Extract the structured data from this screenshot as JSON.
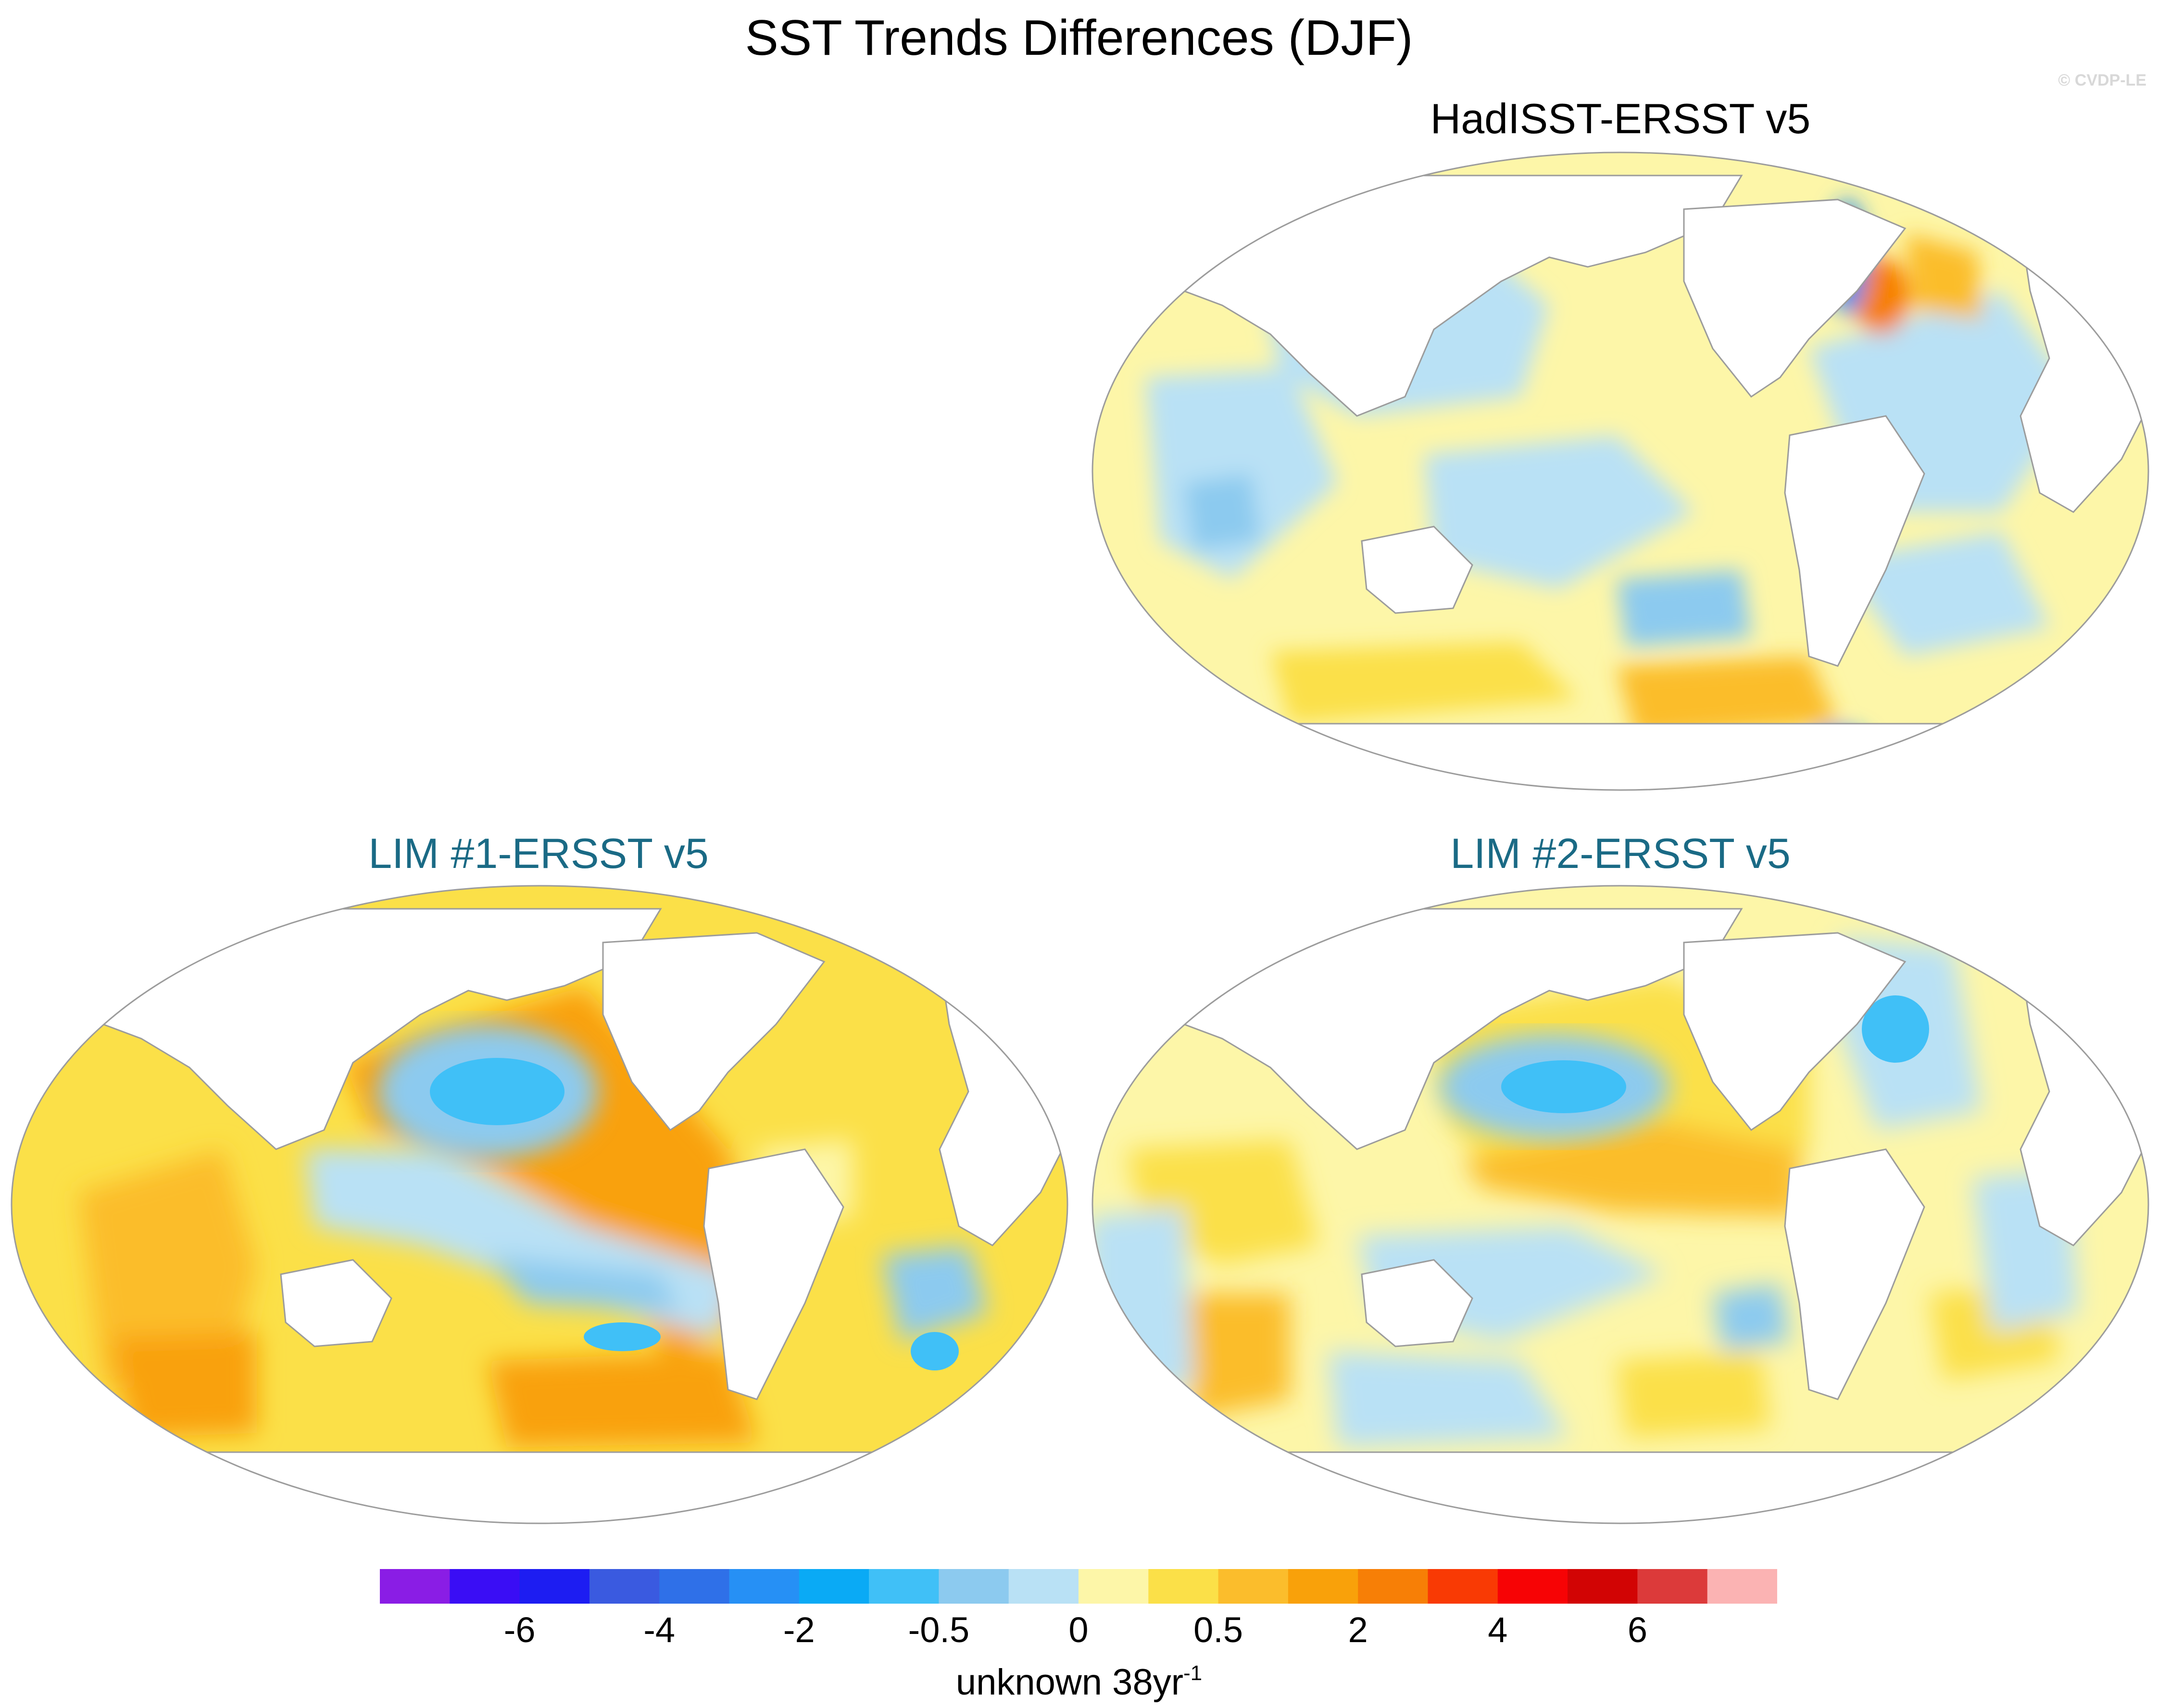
{
  "title": "SST Trends Differences (DJF)",
  "watermark": "© CVDP-LE",
  "panels": [
    {
      "title": "HadISST-ERSST v5",
      "pattern": "mixed-small-scale"
    },
    {
      "title": "LIM #1-ERSST v5",
      "pattern": "broad-positive-with-north-pacific-negative"
    },
    {
      "title": "LIM #2-ERSST v5",
      "pattern": "moderate-positive-with-north-pacific-negative"
    }
  ],
  "colorbar": {
    "colors": [
      "#8a1de5",
      "#3a0df5",
      "#1d1df2",
      "#3a5ae0",
      "#2f70e8",
      "#2690f5",
      "#0aaaf5",
      "#40c0f7",
      "#8ccaef",
      "#b9e1f5",
      "#fdf6a8",
      "#fbe048",
      "#fbbd2c",
      "#f9a10a",
      "#f77f06",
      "#f93a04",
      "#f70305",
      "#d20404",
      "#dc3a3a",
      "#fbb3b3"
    ],
    "tick_labels": [
      "-6",
      "-4",
      "-2",
      "-0.5",
      "0",
      "0.5",
      "2",
      "4",
      "6"
    ],
    "units": "unknown 38yr",
    "units_sup": "-1"
  },
  "map_colors": {
    "coast": "#9c9c9c",
    "strong_neg": "#2690f5",
    "neg": "#8ccaef",
    "weak_neg": "#b9e1f5",
    "weak_pos": "#fdf6a8",
    "pos": "#fbe048",
    "mid_pos": "#fbbd2c",
    "strong_pos": "#f9a10a"
  }
}
